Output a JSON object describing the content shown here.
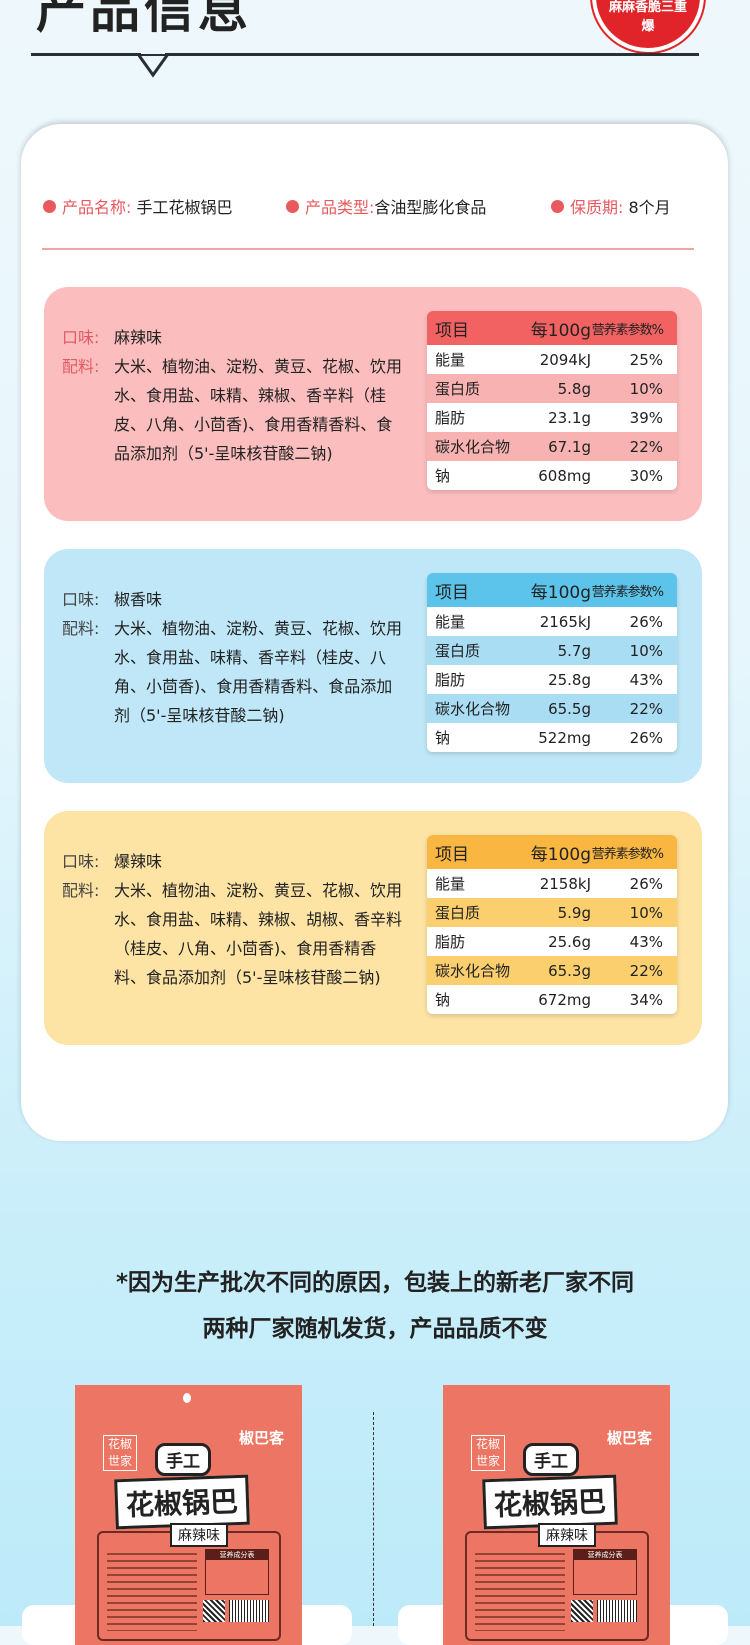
{
  "header": {
    "title": "产品信息",
    "badge_text": "麻麻香脆三重爆"
  },
  "info": {
    "name_label": "产品名称:",
    "name_value": "手工花椒锅巴",
    "type_label": "产品类型:",
    "type_value": "含油型膨化食品",
    "shelf_label": "保质期:",
    "shelf_value": "8个月"
  },
  "colors": {
    "pink_panel": "#fbbdbd",
    "pink_header": "#f26262",
    "pink_alt": "#f8b2b2",
    "blue_panel": "#bfe7f7",
    "blue_header": "#5cc4ea",
    "blue_alt": "#a9ddf4",
    "yellow_panel": "#fde3a4",
    "yellow_header": "#f9b640",
    "yellow_alt": "#fbcf6e"
  },
  "table_header": [
    "项目",
    "每100g",
    "营养素参数%"
  ],
  "flavors": [
    {
      "flavor_label": "口味:",
      "flavor": "麻辣味",
      "ing_label": "配料:",
      "ingredients": "大米、植物油、淀粉、黄豆、花椒、饮用水、食用盐、味精、辣椒、香辛料（桂皮、八角、小茴香)、食用香精香料、食品添加剂（5'-呈味核苷酸二钠)",
      "rows": [
        [
          "能量",
          "2094kJ",
          "25%"
        ],
        [
          "蛋白质",
          "5.8g",
          "10%"
        ],
        [
          "脂肪",
          "23.1g",
          "39%"
        ],
        [
          "碳水化合物",
          "67.1g",
          "22%"
        ],
        [
          "钠",
          "608mg",
          "30%"
        ]
      ]
    },
    {
      "flavor_label": "口味:",
      "flavor": "椒香味",
      "ing_label": "配料:",
      "ingredients": "大米、植物油、淀粉、黄豆、花椒、饮用水、食用盐、味精、香辛料（桂皮、八角、小茴香)、食用香精香料、食品添加剂（5'-呈味核苷酸二钠)",
      "rows": [
        [
          "能量",
          "2165kJ",
          "26%"
        ],
        [
          "蛋白质",
          "5.7g",
          "10%"
        ],
        [
          "脂肪",
          "25.8g",
          "43%"
        ],
        [
          "碳水化合物",
          "65.5g",
          "22%"
        ],
        [
          "钠",
          "522mg",
          "26%"
        ]
      ]
    },
    {
      "flavor_label": "口味:",
      "flavor": "爆辣味",
      "ing_label": "配料:",
      "ingredients": "大米、植物油、淀粉、黄豆、花椒、饮用水、食用盐、味精、辣椒、胡椒、香辛料（桂皮、八角、小茴香)、食用香精香料、食品添加剂（5'-呈味核苷酸二钠)",
      "rows": [
        [
          "能量",
          "2158kJ",
          "26%"
        ],
        [
          "蛋白质",
          "5.9g",
          "10%"
        ],
        [
          "脂肪",
          "25.6g",
          "43%"
        ],
        [
          "碳水化合物",
          "65.3g",
          "22%"
        ],
        [
          "钠",
          "672mg",
          "34%"
        ]
      ]
    }
  ],
  "note": {
    "line1": "*因为生产批次不同的原因，包装上的新老厂家不同",
    "line2": "两种厂家随机发货，产品品质不变"
  },
  "package": {
    "series": "花椒世家",
    "brand": "椒巴客",
    "sub": "手工",
    "name": "花椒锅巴",
    "flavor": "麻辣味",
    "nutrition_title": "营养成分表"
  }
}
